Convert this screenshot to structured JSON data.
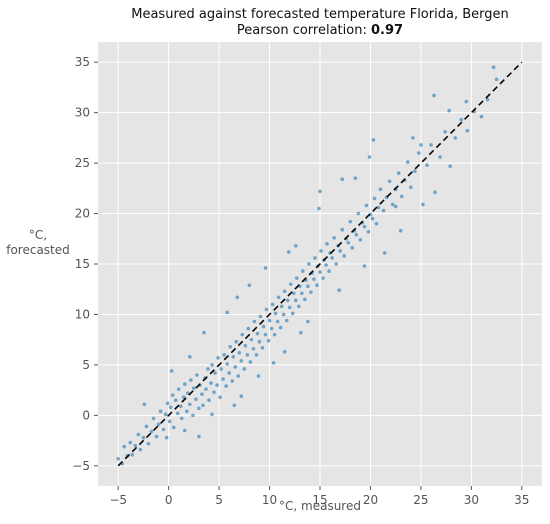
{
  "chart_data": {
    "type": "scatter",
    "title": "Measured against forecasted temperature Florida, Bergen",
    "subtitle_prefix": "Pearson correlation: ",
    "subtitle_value": "0.97",
    "xlabel": "°C, measured",
    "ylabel_line1": "°C,",
    "ylabel_line2": "forecasted",
    "xlim": [
      -7,
      37
    ],
    "ylim": [
      -7,
      37
    ],
    "xticks": [
      -5,
      0,
      5,
      10,
      15,
      20,
      25,
      30,
      35
    ],
    "yticks": [
      -5,
      0,
      5,
      10,
      15,
      20,
      25,
      30,
      35
    ],
    "grid": true,
    "reference_line": {
      "from": [
        -5,
        -5
      ],
      "to": [
        35,
        35
      ],
      "style": "dashed",
      "color": "#000000"
    },
    "series": [
      {
        "color": "#1f77b4",
        "points": [
          [
            -5.0,
            -4.3
          ],
          [
            -4.6,
            -4.8
          ],
          [
            -4.4,
            -3.1
          ],
          [
            -4.1,
            -4.0
          ],
          [
            -3.8,
            -2.7
          ],
          [
            -3.6,
            -3.9
          ],
          [
            -3.3,
            -3.0
          ],
          [
            -3.0,
            -1.9
          ],
          [
            -2.8,
            -3.4
          ],
          [
            -2.5,
            -2.2
          ],
          [
            -2.2,
            -1.1
          ],
          [
            -2.0,
            -2.8
          ],
          [
            -1.7,
            -1.6
          ],
          [
            -1.5,
            -0.3
          ],
          [
            -1.2,
            -2.1
          ],
          [
            -1.0,
            -0.9
          ],
          [
            -0.8,
            0.4
          ],
          [
            -0.5,
            -1.4
          ],
          [
            -0.3,
            0.1
          ],
          [
            -0.1,
            1.2
          ],
          [
            0.1,
            -0.6
          ],
          [
            0.2,
            0.8
          ],
          [
            0.4,
            2.0
          ],
          [
            0.5,
            -1.2
          ],
          [
            0.7,
            1.5
          ],
          [
            0.9,
            0.2
          ],
          [
            1.0,
            2.6
          ],
          [
            1.2,
            0.9
          ],
          [
            1.3,
            -0.3
          ],
          [
            1.5,
            1.8
          ],
          [
            1.6,
            3.1
          ],
          [
            1.8,
            0.4
          ],
          [
            1.9,
            2.2
          ],
          [
            2.1,
            1.1
          ],
          [
            2.2,
            3.5
          ],
          [
            2.4,
            0.0
          ],
          [
            2.5,
            2.7
          ],
          [
            2.7,
            1.6
          ],
          [
            2.8,
            4.0
          ],
          [
            3.0,
            0.7
          ],
          [
            3.1,
            3.0
          ],
          [
            3.3,
            2.1
          ],
          [
            3.4,
            1.0
          ],
          [
            3.6,
            3.7
          ],
          [
            3.7,
            2.6
          ],
          [
            3.9,
            4.6
          ],
          [
            4.0,
            1.5
          ],
          [
            4.2,
            3.2
          ],
          [
            4.3,
            5.0
          ],
          [
            4.5,
            2.3
          ],
          [
            4.6,
            4.2
          ],
          [
            4.8,
            3.0
          ],
          [
            4.9,
            5.7
          ],
          [
            5.1,
            1.8
          ],
          [
            5.2,
            4.6
          ],
          [
            5.4,
            3.6
          ],
          [
            5.5,
            6.0
          ],
          [
            5.7,
            2.9
          ],
          [
            5.8,
            5.1
          ],
          [
            6.0,
            4.2
          ],
          [
            6.1,
            6.8
          ],
          [
            6.3,
            3.4
          ],
          [
            6.4,
            5.8
          ],
          [
            6.6,
            4.8
          ],
          [
            6.7,
            7.3
          ],
          [
            6.9,
            3.9
          ],
          [
            7.0,
            6.2
          ],
          [
            7.2,
            5.4
          ],
          [
            7.3,
            8.0
          ],
          [
            7.5,
            4.6
          ],
          [
            7.6,
            6.9
          ],
          [
            7.8,
            6.0
          ],
          [
            7.9,
            8.6
          ],
          [
            8.1,
            5.3
          ],
          [
            8.2,
            7.5
          ],
          [
            8.4,
            6.6
          ],
          [
            8.5,
            9.3
          ],
          [
            8.7,
            6.0
          ],
          [
            8.8,
            8.1
          ],
          [
            9.0,
            7.3
          ],
          [
            9.1,
            9.8
          ],
          [
            9.3,
            6.7
          ],
          [
            9.4,
            8.8
          ],
          [
            9.6,
            8.0
          ],
          [
            9.7,
            10.5
          ],
          [
            9.9,
            7.4
          ],
          [
            10.0,
            9.4
          ],
          [
            10.2,
            8.6
          ],
          [
            10.3,
            11.0
          ],
          [
            10.5,
            8.0
          ],
          [
            10.6,
            10.1
          ],
          [
            10.8,
            9.3
          ],
          [
            10.9,
            11.7
          ],
          [
            11.1,
            8.7
          ],
          [
            11.2,
            10.8
          ],
          [
            11.4,
            10.0
          ],
          [
            11.5,
            12.3
          ],
          [
            11.7,
            9.4
          ],
          [
            11.8,
            11.4
          ],
          [
            12.0,
            10.7
          ],
          [
            12.1,
            13.0
          ],
          [
            12.3,
            10.1
          ],
          [
            12.4,
            12.1
          ],
          [
            12.6,
            11.4
          ],
          [
            12.7,
            13.6
          ],
          [
            12.9,
            10.8
          ],
          [
            13.0,
            12.8
          ],
          [
            13.2,
            12.1
          ],
          [
            13.3,
            14.3
          ],
          [
            13.5,
            11.5
          ],
          [
            13.6,
            13.4
          ],
          [
            13.8,
            12.8
          ],
          [
            13.9,
            15.0
          ],
          [
            14.1,
            12.2
          ],
          [
            14.2,
            14.1
          ],
          [
            14.4,
            13.5
          ],
          [
            14.5,
            15.6
          ],
          [
            14.7,
            12.9
          ],
          [
            14.8,
            14.8
          ],
          [
            15.0,
            14.2
          ],
          [
            15.1,
            16.3
          ],
          [
            15.3,
            13.6
          ],
          [
            15.4,
            15.4
          ],
          [
            15.6,
            14.9
          ],
          [
            15.7,
            17.0
          ],
          [
            15.9,
            14.3
          ],
          [
            16.0,
            16.1
          ],
          [
            16.2,
            15.6
          ],
          [
            16.4,
            17.6
          ],
          [
            16.6,
            15.0
          ],
          [
            16.8,
            16.8
          ],
          [
            17.0,
            16.3
          ],
          [
            17.2,
            18.4
          ],
          [
            17.4,
            15.8
          ],
          [
            17.6,
            17.5
          ],
          [
            17.8,
            17.1
          ],
          [
            18.0,
            19.2
          ],
          [
            18.2,
            16.6
          ],
          [
            18.4,
            18.3
          ],
          [
            18.6,
            17.9
          ],
          [
            18.8,
            20.0
          ],
          [
            19.0,
            17.4
          ],
          [
            19.2,
            19.1
          ],
          [
            19.4,
            18.7
          ],
          [
            19.6,
            20.8
          ],
          [
            19.8,
            18.2
          ],
          [
            20.0,
            19.9
          ],
          [
            20.2,
            19.5
          ],
          [
            20.4,
            21.5
          ],
          [
            20.6,
            19.0
          ],
          [
            20.8,
            20.6
          ],
          [
            21.0,
            22.4
          ],
          [
            21.3,
            20.3
          ],
          [
            21.6,
            21.6
          ],
          [
            21.9,
            23.2
          ],
          [
            22.2,
            20.9
          ],
          [
            22.5,
            22.4
          ],
          [
            22.8,
            24.0
          ],
          [
            23.1,
            21.7
          ],
          [
            23.4,
            23.3
          ],
          [
            23.7,
            25.1
          ],
          [
            24.0,
            22.6
          ],
          [
            24.4,
            24.2
          ],
          [
            24.8,
            26.0
          ],
          [
            25.2,
            20.9
          ],
          [
            25.6,
            24.8
          ],
          [
            26.0,
            26.8
          ],
          [
            26.4,
            22.1
          ],
          [
            26.9,
            25.6
          ],
          [
            27.4,
            28.1
          ],
          [
            27.9,
            24.7
          ],
          [
            28.4,
            27.5
          ],
          [
            29.0,
            29.3
          ],
          [
            29.6,
            28.2
          ],
          [
            30.3,
            30.1
          ],
          [
            31.0,
            29.6
          ],
          [
            31.6,
            31.3
          ],
          [
            32.2,
            34.5
          ],
          [
            32.5,
            33.3
          ],
          [
            19.9,
            25.6
          ],
          [
            24.2,
            27.5
          ],
          [
            26.3,
            31.7
          ],
          [
            22.5,
            20.7
          ],
          [
            15.0,
            22.2
          ],
          [
            20.3,
            27.3
          ],
          [
            8.0,
            12.9
          ],
          [
            11.5,
            6.3
          ],
          [
            3.0,
            -2.1
          ],
          [
            -0.2,
            -2.2
          ],
          [
            6.5,
            1.0
          ],
          [
            13.8,
            9.3
          ],
          [
            17.2,
            23.4
          ],
          [
            2.1,
            5.8
          ],
          [
            4.3,
            0.1
          ],
          [
            9.6,
            14.6
          ],
          [
            1.6,
            -1.5
          ],
          [
            5.8,
            10.2
          ],
          [
            12.6,
            16.8
          ],
          [
            16.9,
            12.4
          ],
          [
            7.2,
            1.9
          ],
          [
            10.4,
            5.2
          ],
          [
            18.5,
            23.5
          ],
          [
            21.4,
            16.1
          ],
          [
            0.3,
            4.4
          ],
          [
            -2.4,
            1.1
          ],
          [
            14.9,
            20.5
          ],
          [
            23.0,
            18.3
          ],
          [
            3.5,
            8.2
          ],
          [
            8.9,
            3.9
          ],
          [
            11.9,
            16.2
          ],
          [
            6.8,
            11.7
          ],
          [
            19.4,
            14.8
          ],
          [
            25.0,
            26.8
          ],
          [
            27.8,
            30.2
          ],
          [
            29.5,
            31.1
          ],
          [
            13.1,
            8.2
          ]
        ]
      }
    ]
  }
}
